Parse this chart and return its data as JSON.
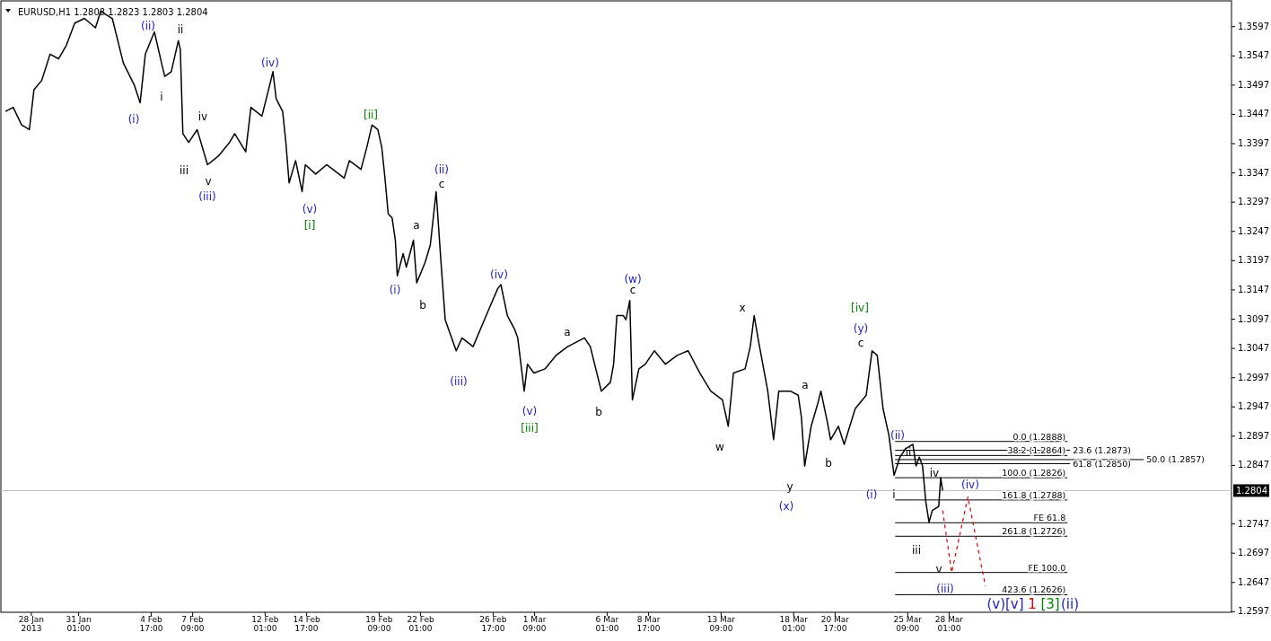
{
  "chart_data": {
    "type": "line",
    "title": "EURUSD,H1  1.2808 1.2823 1.2803 1.2804",
    "xlim": [
      "2013-01-26T01:00",
      "2013-04-15T05:00"
    ],
    "ylim": [
      1.2596,
      1.3641
    ],
    "xticks": [
      {
        "value": "2013-01-28T00:00",
        "label": "28 Jan 2013"
      },
      {
        "value": "2013-01-31T01:00",
        "label": "31 Jan 01:00"
      },
      {
        "value": "2013-02-04T17:00",
        "label": "4 Feb 17:00"
      },
      {
        "value": "2013-02-07T09:00",
        "label": "7 Feb 09:00"
      },
      {
        "value": "2013-02-12T01:00",
        "label": "12 Feb 01:00"
      },
      {
        "value": "2013-02-14T17:00",
        "label": "14 Feb 17:00"
      },
      {
        "value": "2013-02-19T09:00",
        "label": "19 Feb 09:00"
      },
      {
        "value": "2013-02-22T01:00",
        "label": "22 Feb 01:00"
      },
      {
        "value": "2013-02-26T17:00",
        "label": "26 Feb 17:00"
      },
      {
        "value": "2013-03-01T09:00",
        "label": "1 Mar 09:00"
      },
      {
        "value": "2013-03-06T01:00",
        "label": "6 Mar 01:00"
      },
      {
        "value": "2013-03-08T17:00",
        "label": "8 Mar 17:00"
      },
      {
        "value": "2013-03-13T09:00",
        "label": "13 Mar 09:00"
      },
      {
        "value": "2013-03-18T01:00",
        "label": "18 Mar 01:00"
      },
      {
        "value": "2013-03-20T17:00",
        "label": "20 Mar 17:00"
      },
      {
        "value": "2013-03-25T09:00",
        "label": "25 Mar 09:00"
      },
      {
        "value": "2013-03-28T01:00",
        "label": "28 Mar 01:00"
      }
    ],
    "yticks": [
      {
        "value": 1.2597,
        "label": "1.2597"
      },
      {
        "value": 1.2647,
        "label": "1.2647"
      },
      {
        "value": 1.2697,
        "label": "1.2697"
      },
      {
        "value": 1.2747,
        "label": "1.2747"
      },
      {
        "value": 1.2847,
        "label": "1.2847"
      },
      {
        "value": 1.2897,
        "label": "1.2897"
      },
      {
        "value": 1.2947,
        "label": "1.2947"
      },
      {
        "value": 1.2997,
        "label": "1.2997"
      },
      {
        "value": 1.3047,
        "label": "1.3047"
      },
      {
        "value": 1.3097,
        "label": "1.3097"
      },
      {
        "value": 1.3147,
        "label": "1.3147"
      },
      {
        "value": 1.3197,
        "label": "1.3197"
      },
      {
        "value": 1.3247,
        "label": "1.3247"
      },
      {
        "value": 1.3297,
        "label": "1.3297"
      },
      {
        "value": 1.3347,
        "label": "1.3347"
      },
      {
        "value": 1.3397,
        "label": "1.3397"
      },
      {
        "value": 1.3447,
        "label": "1.3447"
      },
      {
        "value": 1.3497,
        "label": "1.3497"
      },
      {
        "value": 1.3547,
        "label": "1.3547"
      },
      {
        "value": 1.3597,
        "label": "1.3597"
      }
    ],
    "marker": "none",
    "series": [
      {
        "color": "#000000",
        "line_style": "solid",
        "x": [
          "2013-01-26T08:00",
          "2013-01-26T20:00",
          "2013-01-27T09:00",
          "2013-01-27T21:00",
          "2013-01-28T04:00",
          "2013-01-28T16:00",
          "2013-01-29T05:00",
          "2013-01-29T18:00",
          "2013-01-30T06:00",
          "2013-01-30T19:00",
          "2013-01-31T10:00",
          "2013-02-01T03:00",
          "2013-02-01T11:00",
          "2013-02-02T05:00",
          "2013-02-02T22:00",
          "2013-02-03T15:00",
          "2013-02-04T00:00",
          "2013-02-04T08:00",
          "2013-02-04T22:00",
          "2013-02-05T09:00",
          "2013-02-05T14:00",
          "2013-02-06T00:00",
          "2013-02-06T11:00",
          "2013-02-06T14:00",
          "2013-02-06T18:00",
          "2013-02-07T03:00",
          "2013-02-07T16:00",
          "2013-02-08T08:00",
          "2013-02-09T01:00",
          "2013-02-09T18:00",
          "2013-02-10T02:00",
          "2013-02-10T19:00",
          "2013-02-11T03:00",
          "2013-02-11T20:00",
          "2013-02-12T08:00",
          "2013-02-12T13:00",
          "2013-02-12T18:00",
          "2013-02-13T04:00",
          "2013-02-13T09:00",
          "2013-02-13T14:00",
          "2013-02-14T00:00",
          "2013-02-14T10:00",
          "2013-02-14T15:00",
          "2013-02-15T07:00",
          "2013-02-16T00:00",
          "2013-02-17T03:00",
          "2013-02-17T11:00",
          "2013-02-18T05:00",
          "2013-02-18T14:00",
          "2013-02-18T22:00",
          "2013-02-19T07:00",
          "2013-02-19T13:00",
          "2013-02-19T18:00",
          "2013-02-19T23:00",
          "2013-02-20T05:00",
          "2013-02-20T10:00",
          "2013-02-20T13:00",
          "2013-02-20T22:00",
          "2013-02-21T03:00",
          "2013-02-21T14:00",
          "2013-02-21T19:00",
          "2013-02-22T08:00",
          "2013-02-22T16:00",
          "2013-02-23T01:00",
          "2013-02-23T08:00",
          "2013-02-23T15:00",
          "2013-02-24T08:00",
          "2013-02-24T17:00",
          "2013-02-25T10:00",
          "2013-02-26T12:00",
          "2013-02-27T00:00",
          "2013-02-27T05:00",
          "2013-02-27T15:00",
          "2013-02-28T02:00",
          "2013-02-28T07:00",
          "2013-02-28T17:00",
          "2013-02-28T22:00",
          "2013-03-01T08:00",
          "2013-03-02T01:00",
          "2013-03-02T18:00",
          "2013-03-03T12:00",
          "2013-03-04T14:00",
          "2013-03-04T23:00",
          "2013-03-05T16:00",
          "2013-03-06T06:00",
          "2013-03-06T11:00",
          "2013-03-06T16:00",
          "2013-03-07T02:00",
          "2013-03-07T06:00",
          "2013-03-07T12:00",
          "2013-03-07T16:00",
          "2013-03-08T02:00",
          "2013-03-08T12:00",
          "2013-03-09T02:00",
          "2013-03-09T19:00",
          "2013-03-10T13:00",
          "2013-03-11T06:00",
          "2013-03-12T00:00",
          "2013-03-12T17:00",
          "2013-03-13T11:00",
          "2013-03-13T20:00",
          "2013-03-14T04:00",
          "2013-03-14T22:00",
          "2013-03-15T06:00",
          "2013-03-15T12:00",
          "2013-03-15T19:00",
          "2013-03-16T09:00",
          "2013-03-16T18:00",
          "2013-03-17T02:00",
          "2013-03-17T20:00",
          "2013-03-18T08:00",
          "2013-03-18T13:00",
          "2013-03-18T18:00",
          "2013-03-19T04:00",
          "2013-03-19T14:00",
          "2013-03-19T19:00",
          "2013-03-20T05:00",
          "2013-03-20T10:00",
          "2013-03-20T22:00",
          "2013-03-21T07:00",
          "2013-03-22T00:00",
          "2013-03-22T17:00",
          "2013-03-23T02:00",
          "2013-03-23T10:00",
          "2013-03-23T19:00",
          "2013-03-24T04:00",
          "2013-03-24T12:00",
          "2013-03-24T21:00",
          "2013-03-25T06:00",
          "2013-03-25T17:00",
          "2013-03-25T22:00",
          "2013-03-26T03:00",
          "2013-03-26T08:00",
          "2013-03-26T13:00",
          "2013-03-26T18:00",
          "2013-03-26T23:00",
          "2013-03-27T09:00",
          "2013-03-27T12:00",
          "2013-03-27T15:00"
        ],
        "values": [
          1.3452,
          1.3459,
          1.3429,
          1.3421,
          1.3489,
          1.3505,
          1.355,
          1.3542,
          1.3565,
          1.3603,
          1.3611,
          1.3595,
          1.3623,
          1.3611,
          1.3535,
          1.3497,
          1.3467,
          1.355,
          1.3588,
          1.3535,
          1.3512,
          1.352,
          1.3573,
          1.3558,
          1.3414,
          1.3399,
          1.3421,
          1.3361,
          1.3376,
          1.3399,
          1.3414,
          1.3383,
          1.3459,
          1.3444,
          1.3497,
          1.352,
          1.3474,
          1.3452,
          1.3399,
          1.333,
          1.3368,
          1.3315,
          1.3361,
          1.3345,
          1.3361,
          1.3338,
          1.3368,
          1.3353,
          1.3391,
          1.3429,
          1.3421,
          1.3391,
          1.3338,
          1.3277,
          1.327,
          1.3232,
          1.3171,
          1.3209,
          1.3186,
          1.3232,
          1.3159,
          1.3194,
          1.3224,
          1.3315,
          1.3202,
          1.3096,
          1.3043,
          1.3065,
          1.305,
          1.3118,
          1.3149,
          1.3156,
          1.3103,
          1.308,
          1.3065,
          1.2974,
          1.302,
          1.3005,
          1.3012,
          1.3035,
          1.305,
          1.3065,
          1.305,
          1.2974,
          1.2989,
          1.302,
          1.3103,
          1.3103,
          1.3096,
          1.3129,
          1.2959,
          1.3012,
          1.302,
          1.3043,
          1.302,
          1.3035,
          1.3043,
          1.3005,
          1.2974,
          1.2959,
          1.2914,
          1.3005,
          1.3012,
          1.305,
          1.3103,
          1.3058,
          1.2974,
          1.2891,
          1.2974,
          1.2974,
          1.2967,
          1.2929,
          1.2846,
          1.2914,
          1.2952,
          1.2974,
          1.2921,
          1.2891,
          1.2914,
          1.2883,
          1.2944,
          1.2967,
          1.3043,
          1.3035,
          1.2944,
          1.2899,
          1.283,
          1.2861,
          1.2876,
          1.2883,
          1.2846,
          1.2861,
          1.2846,
          1.2785,
          1.275,
          1.277,
          1.2777,
          1.2826,
          1.2804
        ]
      },
      {
        "color": "#e00000",
        "line_style": "dashed",
        "x": [
          "2013-03-27T15:00",
          "2013-03-28T05:00",
          "2013-03-29T06:00",
          "2013-03-30T09:00"
        ],
        "values": [
          1.277,
          1.2664,
          1.2793,
          1.2641
        ]
      }
    ],
    "ref_lines": [
      {
        "axis": "y",
        "value": 1.2804,
        "label": "1.2804",
        "color": "#c0c0c0"
      },
      {
        "axis": "y",
        "value": 1.2888,
        "label": "0.0 (1.2888)",
        "color": "#000000"
      },
      {
        "axis": "y",
        "value": 1.2873,
        "label": "23.6 (1.2873)",
        "color": "#000000"
      },
      {
        "axis": "y",
        "value": 1.2864,
        "label": "38.2 (1.2864)",
        "color": "#000000"
      },
      {
        "axis": "y",
        "value": 1.2857,
        "label": "50.0 (1.2857)",
        "color": "#000000"
      },
      {
        "axis": "y",
        "value": 1.285,
        "label": "61.8 (1.2850)",
        "color": "#000000"
      },
      {
        "axis": "y",
        "value": 1.2826,
        "label": "100.0 (1.2826)",
        "color": "#000000"
      },
      {
        "axis": "y",
        "value": 1.2788,
        "label": "161.8 (1.2788)",
        "color": "#000000"
      },
      {
        "axis": "y",
        "value": 1.2749,
        "label": "FE 61.8",
        "color": "#000000"
      },
      {
        "axis": "y",
        "value": 1.2726,
        "label": "261.8 (1.2726)",
        "color": "#000000"
      },
      {
        "axis": "y",
        "value": 1.2664,
        "label": "FE 100.0",
        "color": "#000000"
      },
      {
        "axis": "y",
        "value": 1.2626,
        "label": "423.6 (1.2626)",
        "color": "#000000"
      }
    ],
    "annotations": [
      "(ii)",
      "ii",
      "(i)",
      "i",
      "iv",
      "iii",
      "v",
      "(iii)",
      "(iv)",
      "[ii]",
      "(v)",
      "[i]",
      "(ii)",
      "c",
      "a",
      "(i)",
      "b",
      "(iv)",
      "(iii)",
      "(v)",
      "[iii]",
      "a",
      "b",
      "(w)",
      "c",
      "x",
      "w",
      "a",
      "b",
      "y",
      "(x)",
      "[iv]",
      "(y)",
      "c",
      "(ii)",
      "ii",
      "(i)",
      "i",
      "iv",
      "(iv)",
      "iii",
      "v",
      "(iii)",
      "(v)[v]",
      "1",
      "[3]",
      "(ii)"
    ]
  }
}
